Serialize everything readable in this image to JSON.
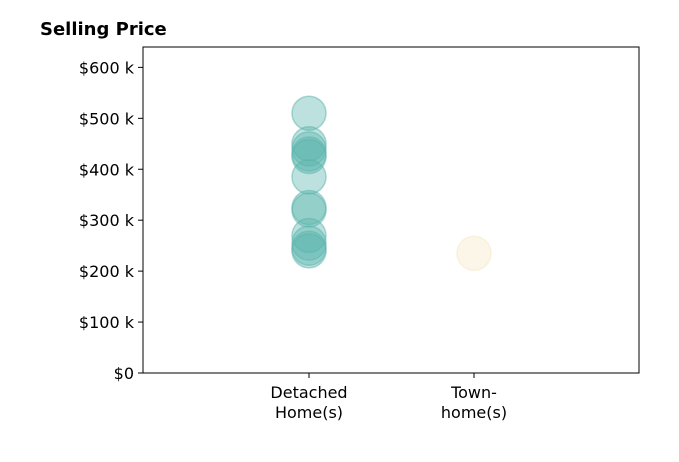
{
  "chart_data": {
    "type": "scatter",
    "title": "Selling Price",
    "xlabel": "",
    "ylabel": "",
    "categories": [
      [
        "Detached",
        "Home(s)"
      ],
      [
        "Town-",
        "home(s)"
      ]
    ],
    "ylim": [
      0,
      640000
    ],
    "y_ticks": [
      0,
      100000,
      200000,
      300000,
      400000,
      500000,
      600000
    ],
    "y_tick_labels": [
      "$0",
      "$100 k",
      "$200 k",
      "$300 k",
      "$400 k",
      "$500 k",
      "$600 k"
    ],
    "grid": false,
    "series": [
      {
        "category_index": 0,
        "color": "#5ab4ac",
        "values": [
          510000,
          450000,
          440000,
          430000,
          425000,
          385000,
          325000,
          320000,
          270000,
          255000,
          245000,
          240000
        ]
      },
      {
        "category_index": 1,
        "color": "#f6e8c3",
        "values": [
          235000
        ]
      }
    ]
  }
}
